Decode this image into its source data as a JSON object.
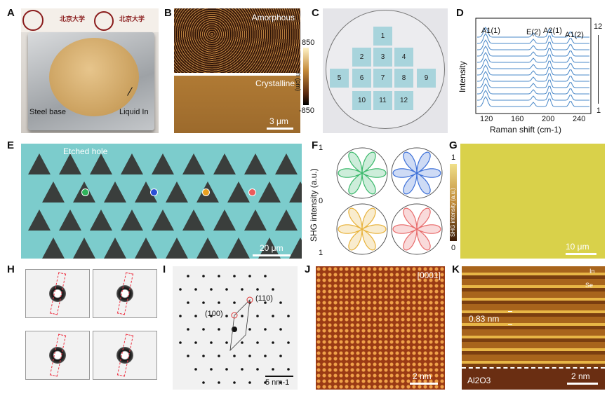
{
  "panel_labels": [
    "A",
    "B",
    "C",
    "D",
    "E",
    "F",
    "G",
    "H",
    "I",
    "J",
    "K"
  ],
  "panelA": {
    "logo_text": [
      "北京大学",
      "北京大学"
    ],
    "steel_base": "Steel base",
    "liquid_in": "Liquid In"
  },
  "panelB": {
    "top_label": "Amorphous",
    "bottom_label": "Crystalline",
    "scale": "3 μm",
    "colorbar_top": "850",
    "colorbar_bottom": "-850",
    "colorbar_unit": "h (pm)"
  },
  "panelC": {
    "cells": [
      "1",
      "2",
      "3",
      "4",
      "5",
      "6",
      "7",
      "8",
      "9",
      "10",
      "11",
      "12"
    ]
  },
  "panelD": {
    "ylabel": "Intensity",
    "xlabel": "Raman shift (cm-1)",
    "xticks": [
      "120",
      "160",
      "200",
      "240"
    ],
    "peaks": [
      "A1(1)",
      "E(2)",
      "A2(1)",
      "A1(2)"
    ],
    "index_top": "12",
    "index_bottom": "1"
  },
  "panelE": {
    "annotation": "Etched hole",
    "scale": "20 μm",
    "dots": [
      "#2fb35a",
      "#2a4fd6",
      "#e8a020",
      "#ea5b5b"
    ]
  },
  "panelF": {
    "ylabel": "SHG intensity (a.u.)",
    "yticks": [
      "1",
      "0",
      "1"
    ],
    "colors": [
      "#39b86a",
      "#3b6fd8",
      "#e8b23a",
      "#e86a6a"
    ]
  },
  "panelG": {
    "colorbar_top": "1",
    "colorbar_bottom": "0",
    "colorbar_label": "SHG intensity (a.u.)",
    "scale": "10 μm"
  },
  "panelI": {
    "spot1": "(100)",
    "spot2": "(110)",
    "scale": "5 nm-1"
  },
  "panelJ": {
    "zone": "[0001]",
    "scale": "2 nm"
  },
  "panelK": {
    "spacing": "0.83 nm",
    "substrate": "Al2O3",
    "scale": "2 nm",
    "atom_in": "In",
    "atom_se": "Se"
  }
}
